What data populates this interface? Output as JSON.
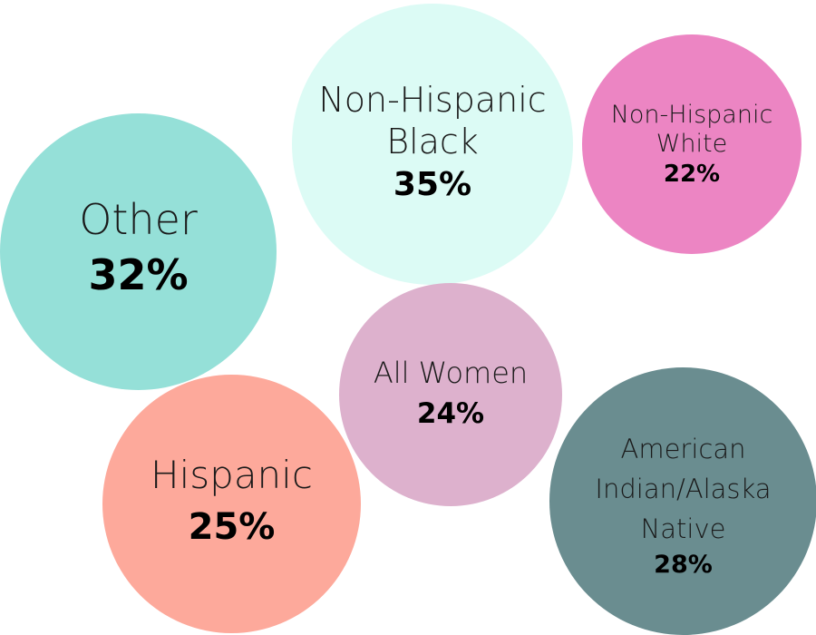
{
  "chart_data": {
    "type": "bubble",
    "categories": [
      "Other",
      "Non-Hispanic Black",
      "Non-Hispanic White",
      "All Women",
      "Hispanic",
      "American Indian/Alaska Native"
    ],
    "values": [
      32,
      35,
      22,
      24,
      25,
      28
    ],
    "unit": "%",
    "bubbles": [
      {
        "key": "other",
        "label_lines": [
          "Other"
        ],
        "value": 32,
        "display": "32%",
        "color": "#95e0d8"
      },
      {
        "key": "nhb",
        "label_lines": [
          "Non-Hispanic",
          "Black"
        ],
        "value": 35,
        "display": "35%",
        "color": "#dcfbf5"
      },
      {
        "key": "nhw",
        "label_lines": [
          "Non-Hispanic",
          "White"
        ],
        "value": 22,
        "display": "22%",
        "color": "#ec85c3"
      },
      {
        "key": "all",
        "label_lines": [
          "All Women"
        ],
        "value": 24,
        "display": "24%",
        "color": "#ddb1cd"
      },
      {
        "key": "his",
        "label_lines": [
          "Hispanic"
        ],
        "value": 25,
        "display": "25%",
        "color": "#fda99b"
      },
      {
        "key": "aian",
        "label_lines": [
          "American",
          "Indian/Alaska",
          "Native"
        ],
        "value": 28,
        "display": "28%",
        "color": "#6a8d90"
      }
    ]
  }
}
